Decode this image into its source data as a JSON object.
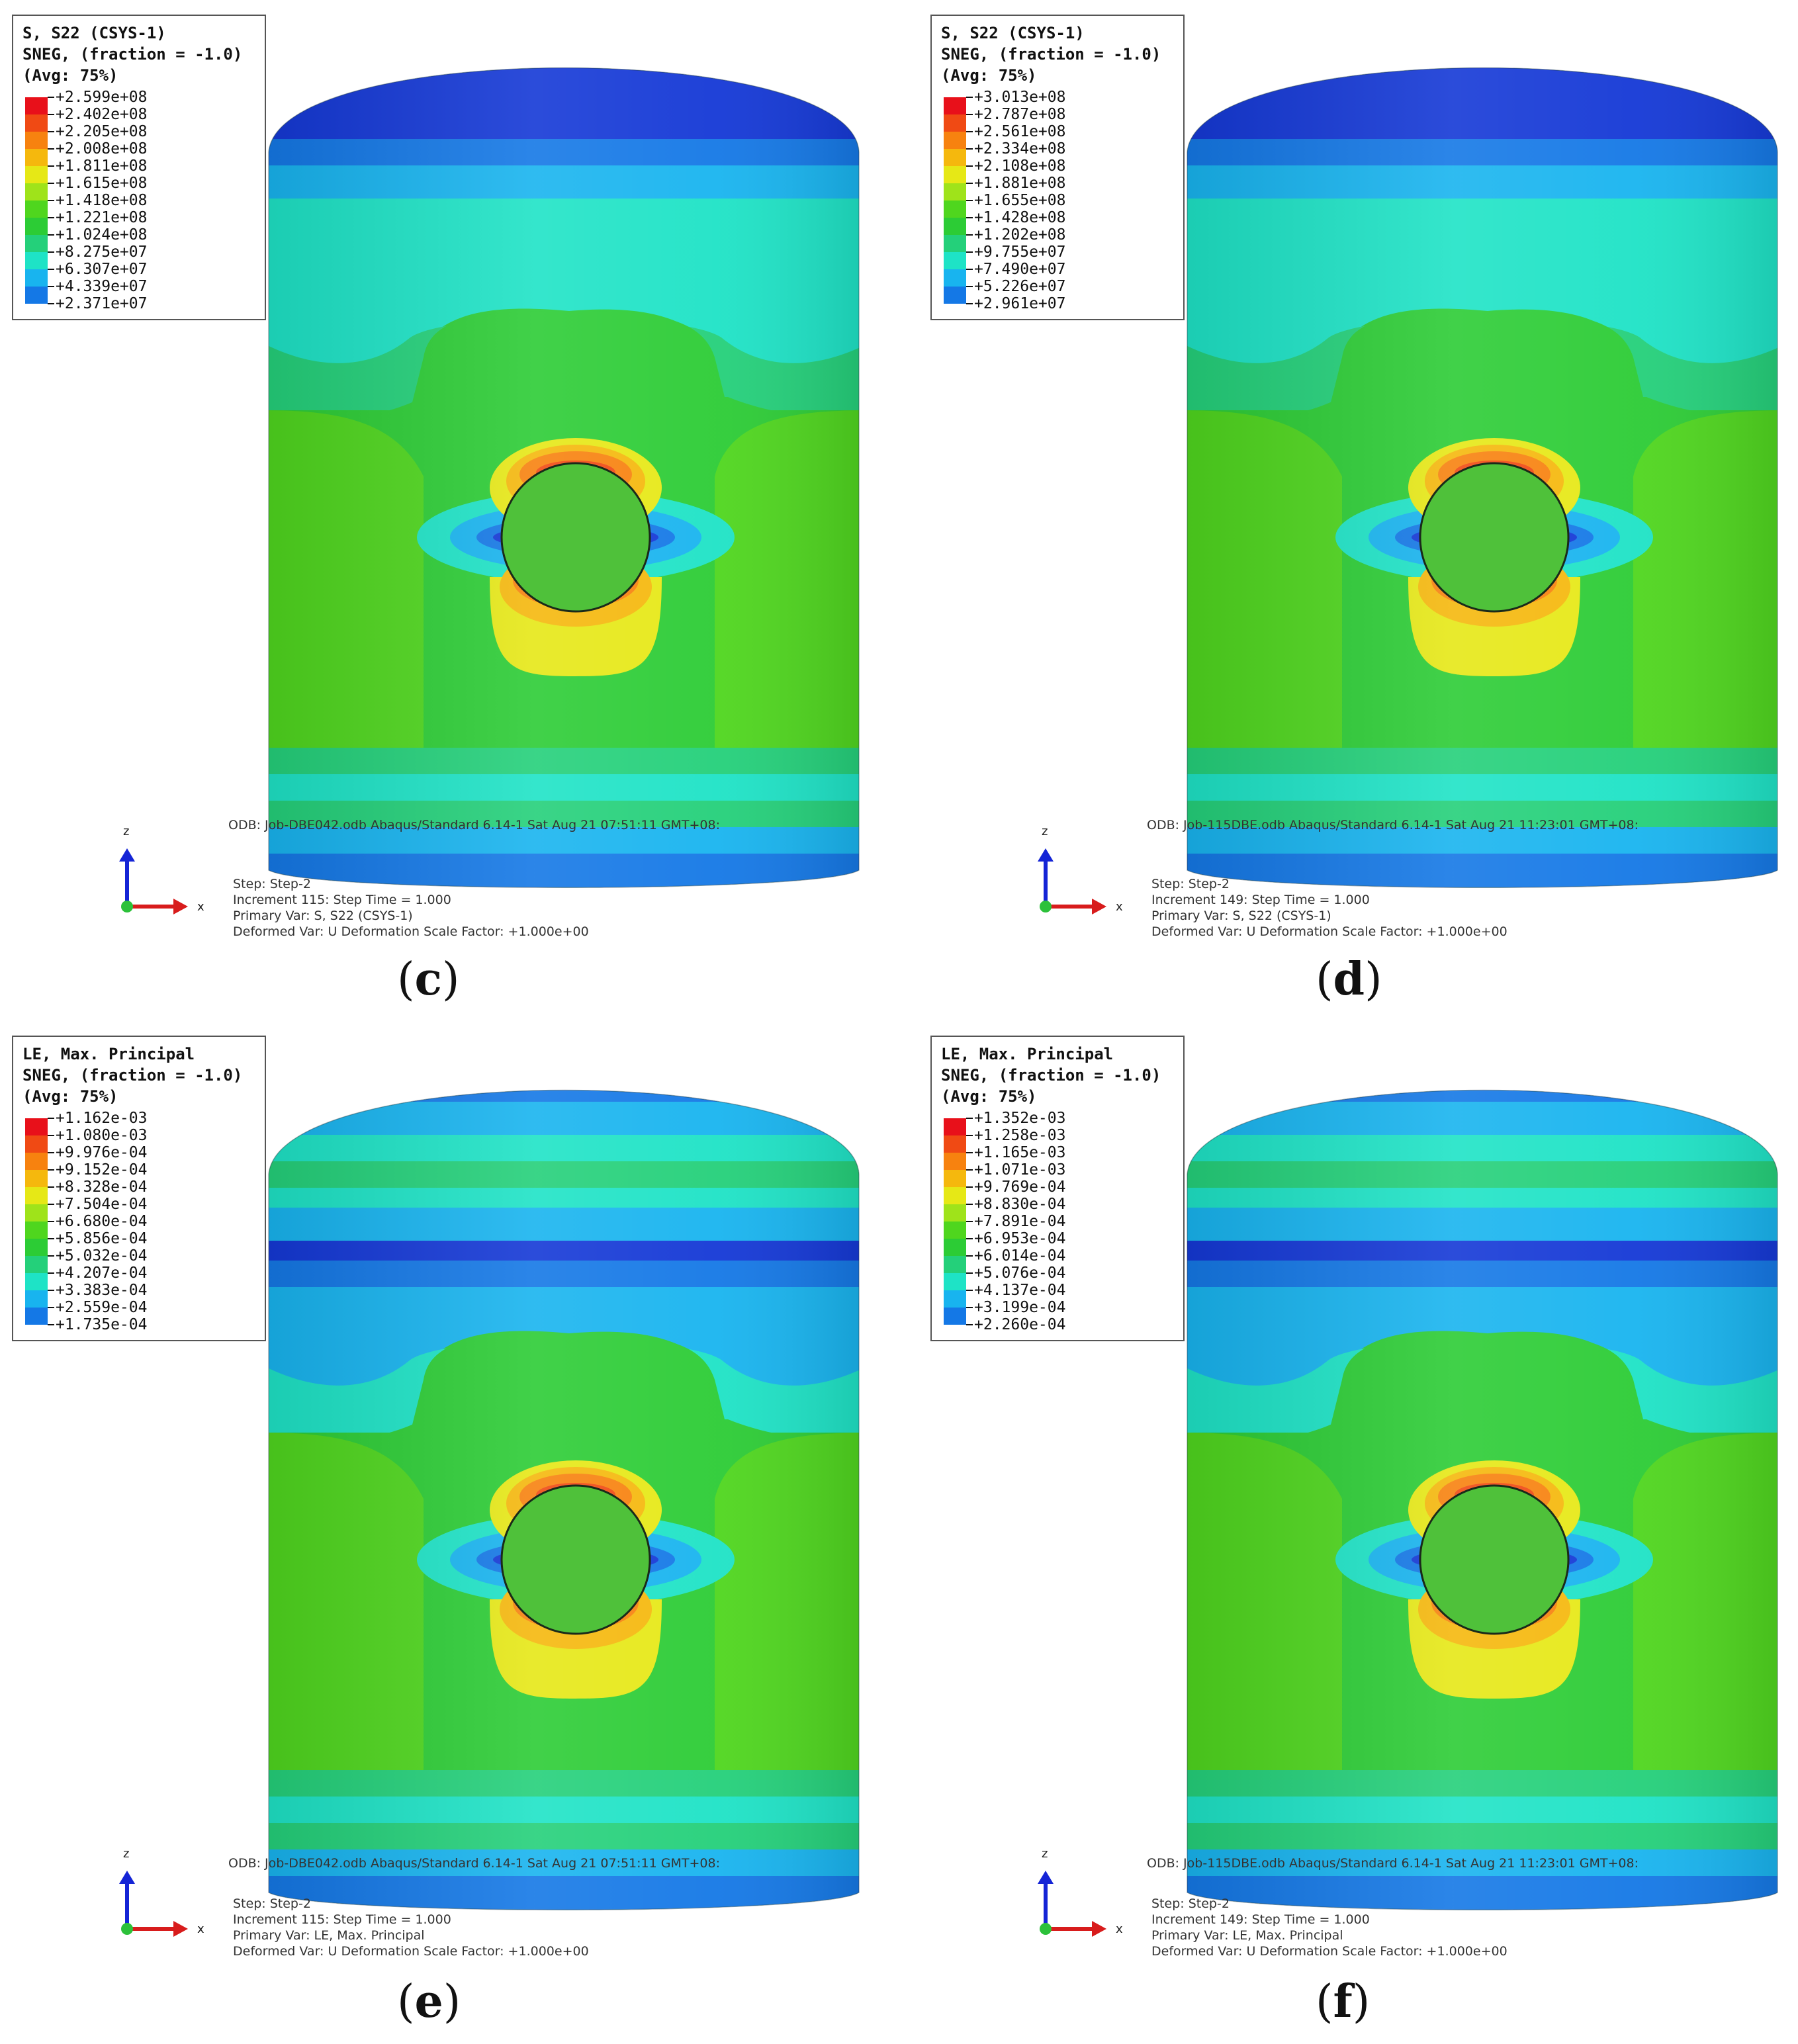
{
  "panels": [
    {
      "id": "c",
      "label_open": "(",
      "label_letter": "c",
      "label_close": ")",
      "legend": {
        "title1": "S, S22 (CSYS-1)",
        "title2": "SNEG, (fraction = -1.0)",
        "title3": "(Avg: 75%)",
        "values": [
          "+2.599e+08",
          "+2.402e+08",
          "+2.205e+08",
          "+2.008e+08",
          "+1.811e+08",
          "+1.615e+08",
          "+1.418e+08",
          "+1.221e+08",
          "+1.024e+08",
          "+8.275e+07",
          "+6.307e+07",
          "+4.339e+07",
          "+2.371e+07"
        ]
      },
      "odb": "ODB: Job-DBE042.odb    Abaqus/Standard 6.14-1    Sat Aug 21 07:51:11 GMT+08:",
      "info": [
        "Step: Step-2",
        "Increment    115: Step Time =     1.000",
        "Primary Var: S, S22 (CSYS-1)",
        "Deformed Var: U   Deformation Scale Factor: +1.000e+00"
      ]
    },
    {
      "id": "d",
      "label_open": "(",
      "label_letter": "d",
      "label_close": ")",
      "legend": {
        "title1": "S, S22 (CSYS-1)",
        "title2": "SNEG, (fraction = -1.0)",
        "title3": "(Avg: 75%)",
        "values": [
          "+3.013e+08",
          "+2.787e+08",
          "+2.561e+08",
          "+2.334e+08",
          "+2.108e+08",
          "+1.881e+08",
          "+1.655e+08",
          "+1.428e+08",
          "+1.202e+08",
          "+9.755e+07",
          "+7.490e+07",
          "+5.226e+07",
          "+2.961e+07"
        ]
      },
      "odb": "ODB: Job-115DBE.odb    Abaqus/Standard 6.14-1    Sat Aug 21 11:23:01 GMT+08:",
      "info": [
        "Step: Step-2",
        "Increment    149: Step Time =     1.000",
        "Primary Var: S, S22 (CSYS-1)",
        "Deformed Var: U   Deformation Scale Factor: +1.000e+00"
      ]
    },
    {
      "id": "e",
      "label_open": "(",
      "label_letter": "e",
      "label_close": ")",
      "legend": {
        "title1": "LE, Max. Principal",
        "title2": "SNEG, (fraction = -1.0)",
        "title3": "(Avg: 75%)",
        "values": [
          "+1.162e-03",
          "+1.080e-03",
          "+9.976e-04",
          "+9.152e-04",
          "+8.328e-04",
          "+7.504e-04",
          "+6.680e-04",
          "+5.856e-04",
          "+5.032e-04",
          "+4.207e-04",
          "+3.383e-04",
          "+2.559e-04",
          "+1.735e-04"
        ]
      },
      "odb": "ODB: Job-DBE042.odb    Abaqus/Standard 6.14-1    Sat Aug 21 07:51:11 GMT+08:",
      "info": [
        "Step: Step-2",
        "Increment    115: Step Time =     1.000",
        "Primary Var: LE, Max. Principal",
        "Deformed Var: U   Deformation Scale Factor: +1.000e+00"
      ]
    },
    {
      "id": "f",
      "label_open": "(",
      "label_letter": "f",
      "label_close": ")",
      "legend": {
        "title1": "LE, Max. Principal",
        "title2": "SNEG, (fraction = -1.0)",
        "title3": "(Avg: 75%)",
        "values": [
          "+1.352e-03",
          "+1.258e-03",
          "+1.165e-03",
          "+1.071e-03",
          "+9.769e-04",
          "+8.830e-04",
          "+7.891e-04",
          "+6.953e-04",
          "+6.014e-04",
          "+5.076e-04",
          "+4.137e-04",
          "+3.199e-04",
          "+2.260e-04"
        ]
      },
      "odb": "ODB: Job-115DBE.odb    Abaqus/Standard 6.14-1    Sat Aug 21 11:23:01 GMT+08:",
      "info": [
        "Step: Step-2",
        "Increment    149: Step Time =     1.000",
        "Primary Var: LE, Max. Principal",
        "Deformed Var: U   Deformation Scale Factor: +1.000e+00"
      ]
    }
  ],
  "triad": {
    "z": "z",
    "x": "x"
  },
  "colors": {
    "contour": [
      "#e8101a",
      "#f04a14",
      "#f7820f",
      "#f5b80d",
      "#e6e816",
      "#9fe31a",
      "#4fd61e",
      "#2ccc35",
      "#24d07a",
      "#1ee3c6",
      "#18b4ef",
      "#1478e6",
      "#1438d6"
    ]
  }
}
